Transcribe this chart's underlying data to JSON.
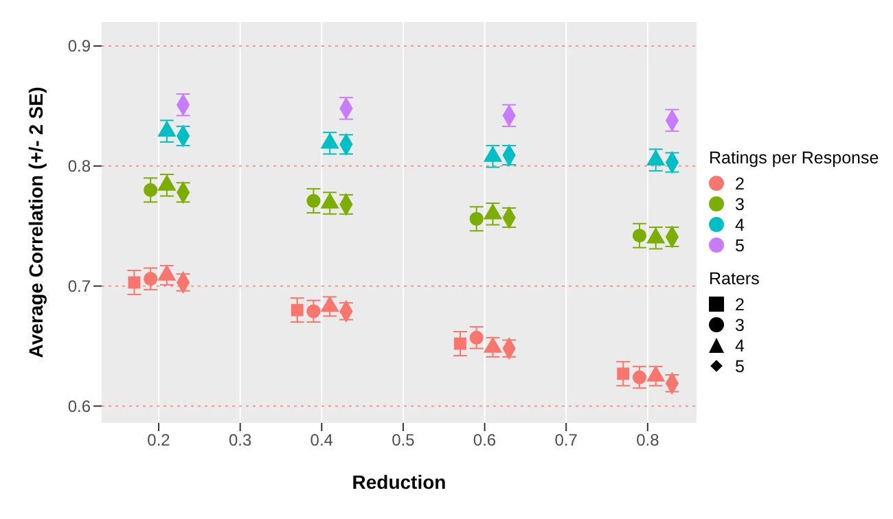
{
  "chart_data": {
    "type": "scatter",
    "xlabel": "Reduction",
    "ylabel": "Average Correlation (+/- 2 SE)",
    "legend_title": "Ratings per Response",
    "legend": "right",
    "grid": true,
    "xlim": [
      0.13,
      0.86
    ],
    "xticks": [
      0.2,
      0.3,
      0.4,
      0.5,
      0.6,
      0.7,
      0.8
    ],
    "ylim": [
      0.586,
      0.92
    ],
    "yticks": [
      0.6,
      0.7,
      0.8,
      0.9
    ],
    "annotations": [
      "Raters",
      "2",
      "3",
      "4",
      "5"
    ],
    "series": [
      {
        "color": "#f8766d",
        "marker": "square",
        "x": [
          0.17,
          0.37,
          0.57,
          0.77
        ],
        "values": [
          0.703,
          0.68,
          0.652,
          0.627
        ],
        "errors": [
          0.01,
          0.01,
          0.01,
          0.01
        ]
      },
      {
        "name": "2",
        "color": "#f8766d",
        "marker": "circle",
        "x": [
          0.19,
          0.39,
          0.59,
          0.79
        ],
        "values": [
          0.706,
          0.679,
          0.657,
          0.624
        ],
        "errors": [
          0.009,
          0.009,
          0.009,
          0.009
        ]
      },
      {
        "color": "#f8766d",
        "marker": "triangle",
        "x": [
          0.21,
          0.41,
          0.61,
          0.81
        ],
        "values": [
          0.709,
          0.683,
          0.649,
          0.625
        ],
        "errors": [
          0.008,
          0.008,
          0.008,
          0.008
        ]
      },
      {
        "color": "#f8766d",
        "marker": "diamond",
        "x": [
          0.23,
          0.43,
          0.63,
          0.83
        ],
        "values": [
          0.703,
          0.679,
          0.648,
          0.619
        ],
        "errors": [
          0.007,
          0.007,
          0.007,
          0.007
        ]
      },
      {
        "name": "3",
        "color": "#7cae00",
        "marker": "circle",
        "x": [
          0.19,
          0.39,
          0.59,
          0.79
        ],
        "values": [
          0.78,
          0.771,
          0.756,
          0.742
        ],
        "errors": [
          0.01,
          0.01,
          0.01,
          0.01
        ]
      },
      {
        "color": "#7cae00",
        "marker": "triangle",
        "x": [
          0.21,
          0.41,
          0.61,
          0.81
        ],
        "values": [
          0.784,
          0.769,
          0.76,
          0.74
        ],
        "errors": [
          0.009,
          0.009,
          0.009,
          0.009
        ]
      },
      {
        "color": "#7cae00",
        "marker": "diamond",
        "x": [
          0.23,
          0.43,
          0.63,
          0.83
        ],
        "values": [
          0.778,
          0.768,
          0.757,
          0.741
        ],
        "errors": [
          0.008,
          0.008,
          0.008,
          0.008
        ]
      },
      {
        "name": "4",
        "color": "#00bfc4",
        "marker": "triangle",
        "x": [
          0.21,
          0.41,
          0.61,
          0.81
        ],
        "values": [
          0.829,
          0.819,
          0.808,
          0.805
        ],
        "errors": [
          0.009,
          0.009,
          0.009,
          0.009
        ]
      },
      {
        "color": "#00bfc4",
        "marker": "diamond",
        "x": [
          0.23,
          0.43,
          0.63,
          0.83
        ],
        "values": [
          0.825,
          0.818,
          0.809,
          0.803
        ],
        "errors": [
          0.008,
          0.008,
          0.008,
          0.008
        ]
      },
      {
        "name": "5",
        "color": "#c77cff",
        "marker": "diamond",
        "x": [
          0.23,
          0.43,
          0.63,
          0.83
        ],
        "values": [
          0.851,
          0.848,
          0.842,
          0.838
        ],
        "errors": [
          0.009,
          0.009,
          0.009,
          0.009
        ]
      }
    ]
  }
}
